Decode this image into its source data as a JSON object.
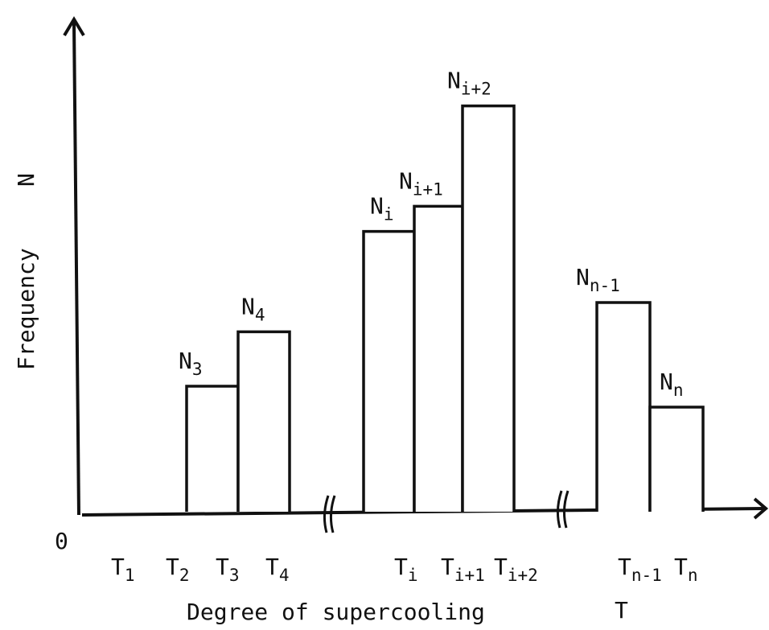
{
  "chart_data": {
    "type": "bar",
    "origin_label": "0",
    "xlabel": "Degree of supercooling",
    "xlabel_symbol": "T",
    "ylabel": "Frequency",
    "ylabel_symbol": "N",
    "axis_breaks": 2,
    "tick_labels": [
      {
        "base": "T",
        "sub": "1"
      },
      {
        "base": "T",
        "sub": "2"
      },
      {
        "base": "T",
        "sub": "3"
      },
      {
        "base": "T",
        "sub": "4"
      },
      {
        "base": "T",
        "sub": "i"
      },
      {
        "base": "T",
        "sub": "i+1"
      },
      {
        "base": "T",
        "sub": "i+2"
      },
      {
        "base": "T",
        "sub": "n-1"
      },
      {
        "base": "T",
        "sub": "n"
      }
    ],
    "bars": [
      {
        "label_base": "N",
        "label_sub": "3",
        "value": 0.3
      },
      {
        "label_base": "N",
        "label_sub": "4",
        "value": 0.43
      },
      {
        "label_base": "N",
        "label_sub": "i",
        "value": 0.67
      },
      {
        "label_base": "N",
        "label_sub": "i+1",
        "value": 0.73
      },
      {
        "label_base": "N",
        "label_sub": "i+2",
        "value": 0.97
      },
      {
        "label_base": "N",
        "label_sub": "n-1",
        "value": 0.5
      },
      {
        "label_base": "N",
        "label_sub": "n",
        "value": 0.25
      }
    ],
    "ylim": [
      0,
      1
    ],
    "grid": false,
    "legend": "none"
  }
}
